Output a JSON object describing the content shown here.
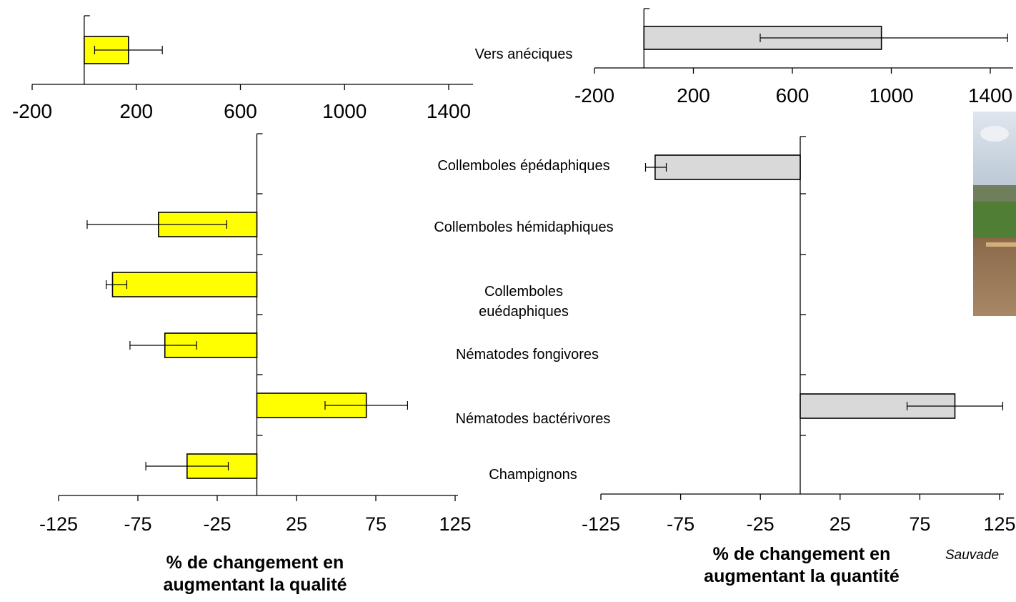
{
  "credit": "Sauvade",
  "category_labels": {
    "vers_aneciques": "Vers anéciques",
    "collemboles_epedaphiques": "Collemboles épédaphiques",
    "collemboles_hemidaphiques": "Collemboles hémidaphiques",
    "collemboles_euedaphiques_1": "Collemboles",
    "collemboles_euedaphiques_2": "euédaphiques",
    "nematodes_fongivores": "Nématodes fongivores",
    "nematodes_bacterivores": "Nématodes bactérivores",
    "champignons": "Champignons"
  },
  "colors": {
    "qualite_bar": "#ffff00",
    "quantite_bar": "#d9d9d9",
    "stroke": "#000000"
  },
  "chart_data": [
    {
      "id": "qualite-top",
      "type": "bar",
      "orientation": "horizontal",
      "title": "",
      "xlabel": "",
      "xlim": [
        -200,
        1500
      ],
      "xticks": [
        -200,
        200,
        600,
        1000,
        1400
      ],
      "categories": [
        "Vers anéciques"
      ],
      "series": [
        {
          "values": [
            170
          ],
          "err_low": [
            40
          ],
          "err_high": [
            300
          ]
        }
      ]
    },
    {
      "id": "quantite-top",
      "type": "bar",
      "orientation": "horizontal",
      "title": "",
      "xlabel": "",
      "xlim": [
        -200,
        1400
      ],
      "xticks": [
        -200,
        200,
        600,
        1000,
        1400
      ],
      "categories": [
        "Vers anéciques"
      ],
      "series": [
        {
          "values": [
            960
          ],
          "err_low": [
            470
          ],
          "err_high": [
            1470
          ]
        }
      ]
    },
    {
      "id": "qualite-main",
      "type": "bar",
      "orientation": "horizontal",
      "title": "",
      "xlabel_lines": [
        "% de changement en",
        "augmentant la qualité"
      ],
      "xlim": [
        -150,
        140
      ],
      "xticks": [
        -125,
        -75,
        -25,
        25,
        75,
        125
      ],
      "categories": [
        "Collemboles épédaphiques",
        "Collemboles hémidaphiques",
        "Collemboles euédaphiques",
        "Nématodes fongivores",
        "Nématodes bactérivores",
        "Champignons"
      ],
      "series": [
        {
          "values": [
            null,
            -62,
            -91,
            -58,
            69,
            -44
          ],
          "err_low": [
            null,
            -107,
            -95,
            -80,
            43,
            -70
          ],
          "err_high": [
            null,
            -19,
            -82,
            -38,
            95,
            -18
          ]
        }
      ]
    },
    {
      "id": "quantite-main",
      "type": "bar",
      "orientation": "horizontal",
      "title": "",
      "xlabel_lines": [
        "% de changement en",
        "augmentant la quantité"
      ],
      "xlim": [
        -125,
        140
      ],
      "xticks": [
        -125,
        -75,
        -25,
        25,
        75,
        125
      ],
      "categories": [
        "Collemboles épédaphiques",
        "Collemboles hémidaphiques",
        "Collemboles euédaphiques",
        "Nématodes fongivores",
        "Nématodes bactérivores",
        "Champignons"
      ],
      "series": [
        {
          "values": [
            -91,
            null,
            null,
            null,
            97,
            null
          ],
          "err_low": [
            -97,
            null,
            null,
            null,
            67,
            null
          ],
          "err_high": [
            -84,
            null,
            null,
            null,
            127,
            null
          ]
        }
      ]
    }
  ]
}
